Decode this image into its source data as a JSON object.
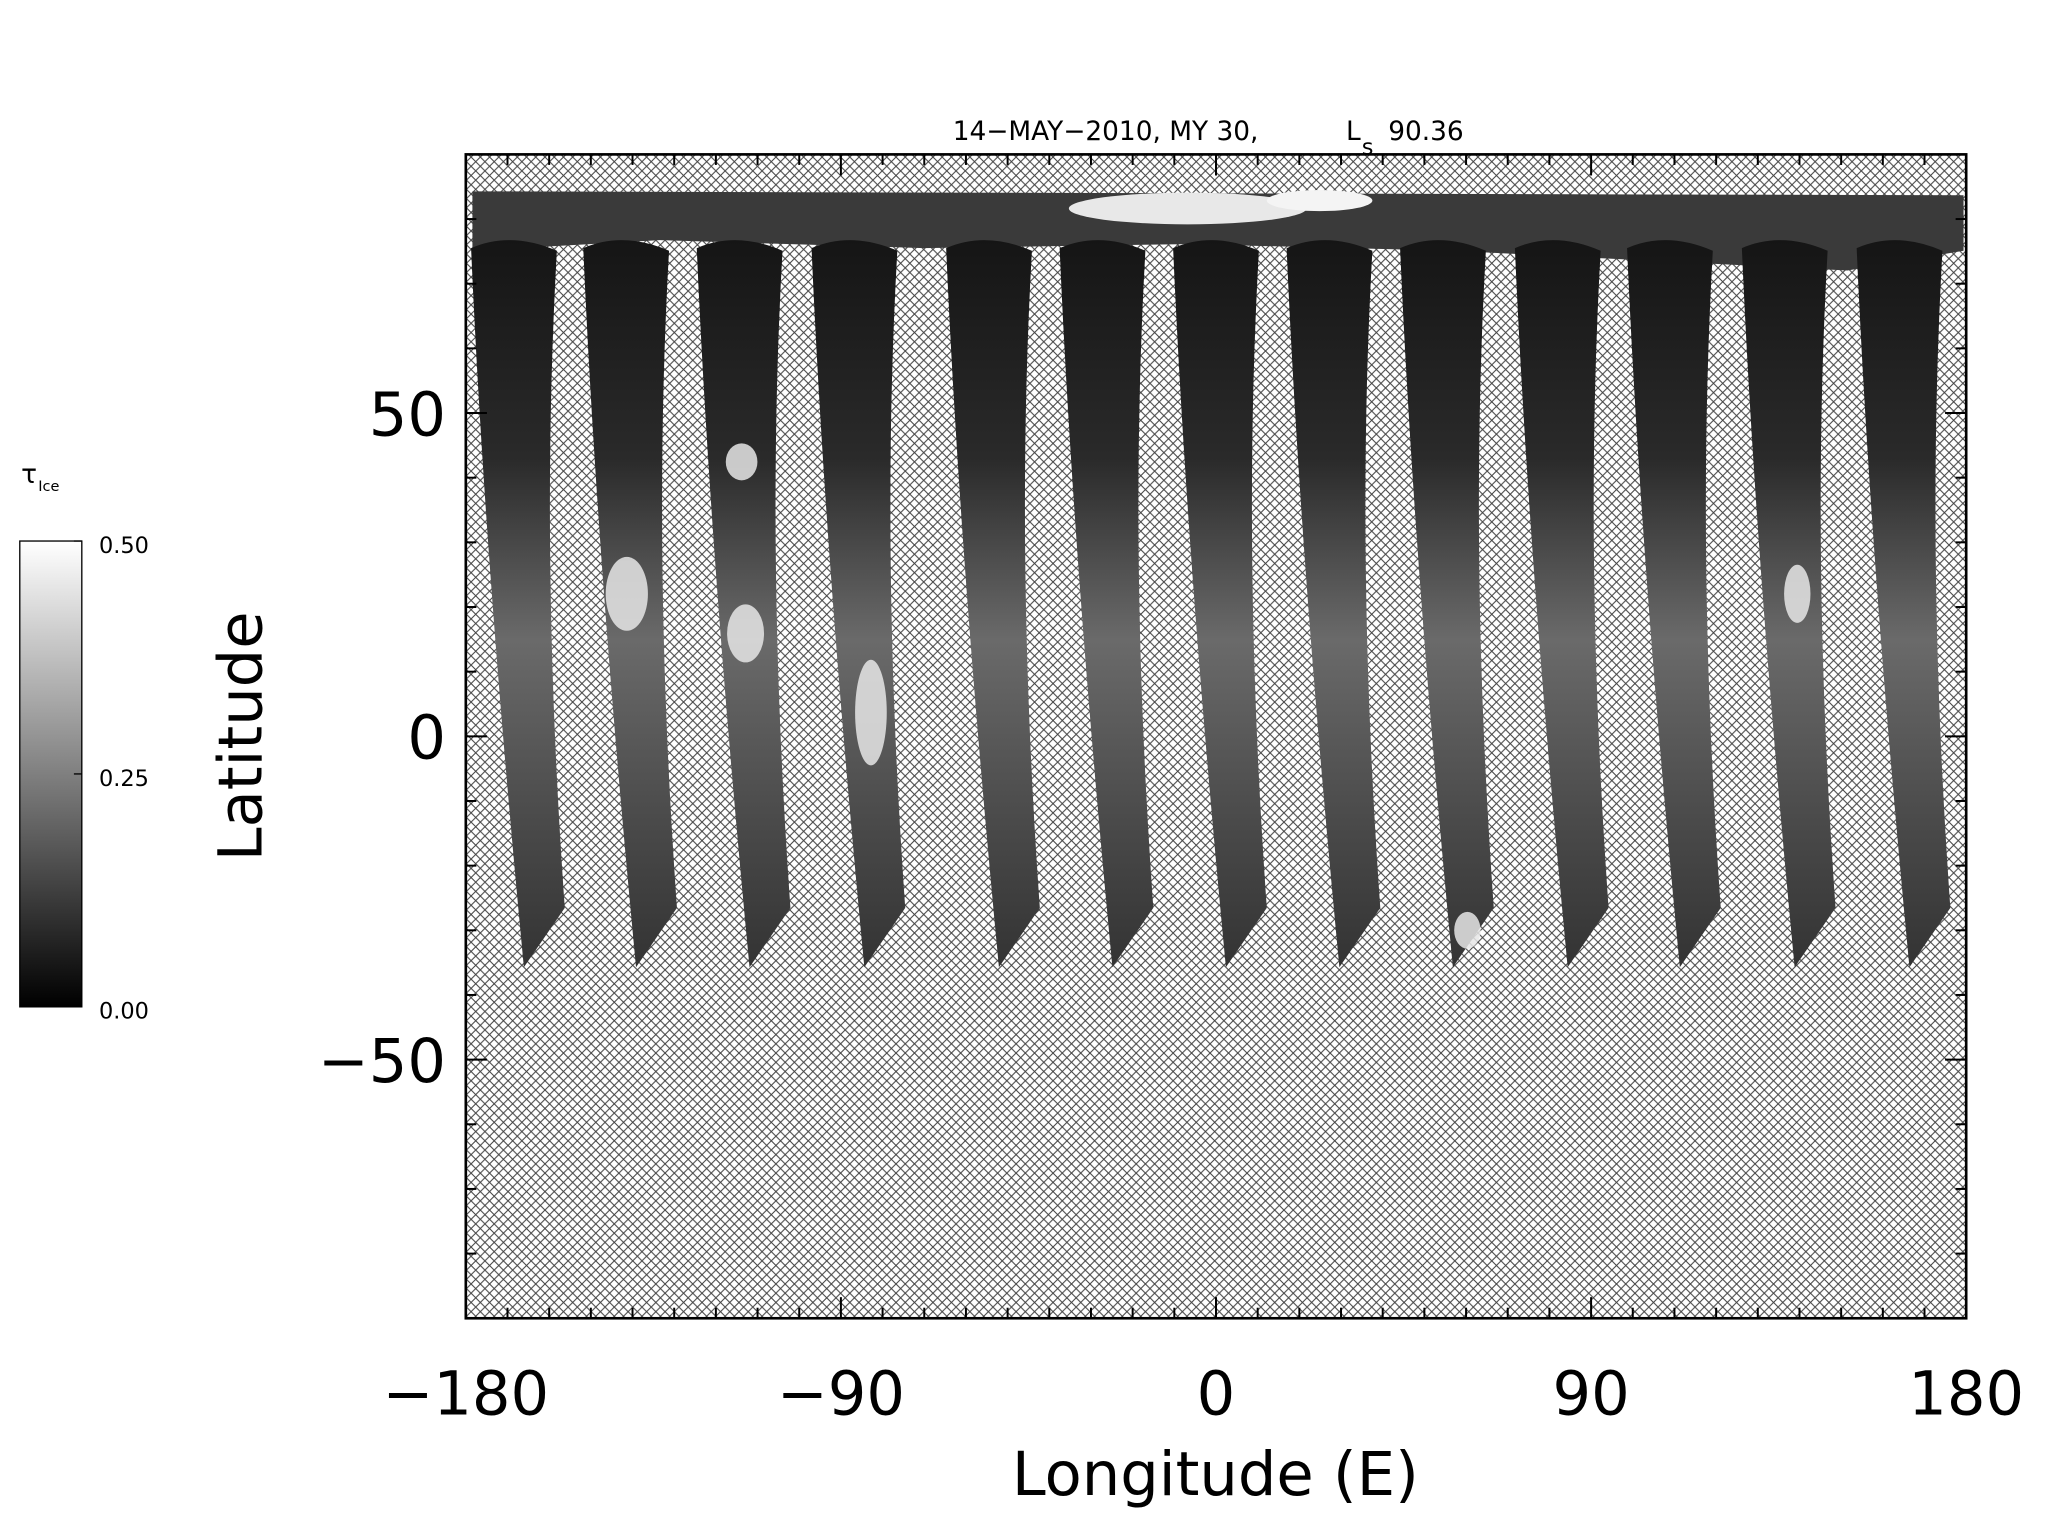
{
  "chart_data": {
    "type": "heatmap",
    "title": "14−MAY−2010, MY 30,",
    "solar_longitude_label": "L",
    "solar_longitude_subscript": "s",
    "solar_longitude": 90.36,
    "xlabel": "Longitude (E)",
    "ylabel": "Latitude",
    "xlim": [
      -180,
      180
    ],
    "ylim": [
      -90,
      90
    ],
    "xticks": [
      {
        "value": -180,
        "label": "−180"
      },
      {
        "value": -90,
        "label": "−90"
      },
      0,
      90,
      180
    ],
    "yticks": [
      {
        "value": -50,
        "label": "−50"
      },
      0,
      50
    ],
    "xminorticks": [
      -170,
      -160,
      -150,
      -140,
      -130,
      -120,
      -110,
      -100,
      -80,
      -70,
      -60,
      -50,
      -40,
      -30,
      -20,
      -10,
      10,
      20,
      30,
      40,
      50,
      60,
      70,
      80,
      100,
      110,
      120,
      130,
      140,
      150,
      160,
      170
    ],
    "yminorticks": [
      -80,
      -70,
      -60,
      -40,
      -30,
      -20,
      -10,
      10,
      20,
      30,
      40,
      60,
      70,
      80
    ],
    "colorbar": {
      "label": "τ",
      "label_subscript": "Ice",
      "clim": [
        0,
        0.5
      ],
      "colors": [
        "#000000",
        "#ffffff"
      ],
      "ticks": [
        {
          "value": 0,
          "label": "0.00"
        },
        {
          "value": 0.25,
          "label": "0.25"
        },
        {
          "value": 0.5,
          "label": "0.50"
        }
      ]
    }
  }
}
